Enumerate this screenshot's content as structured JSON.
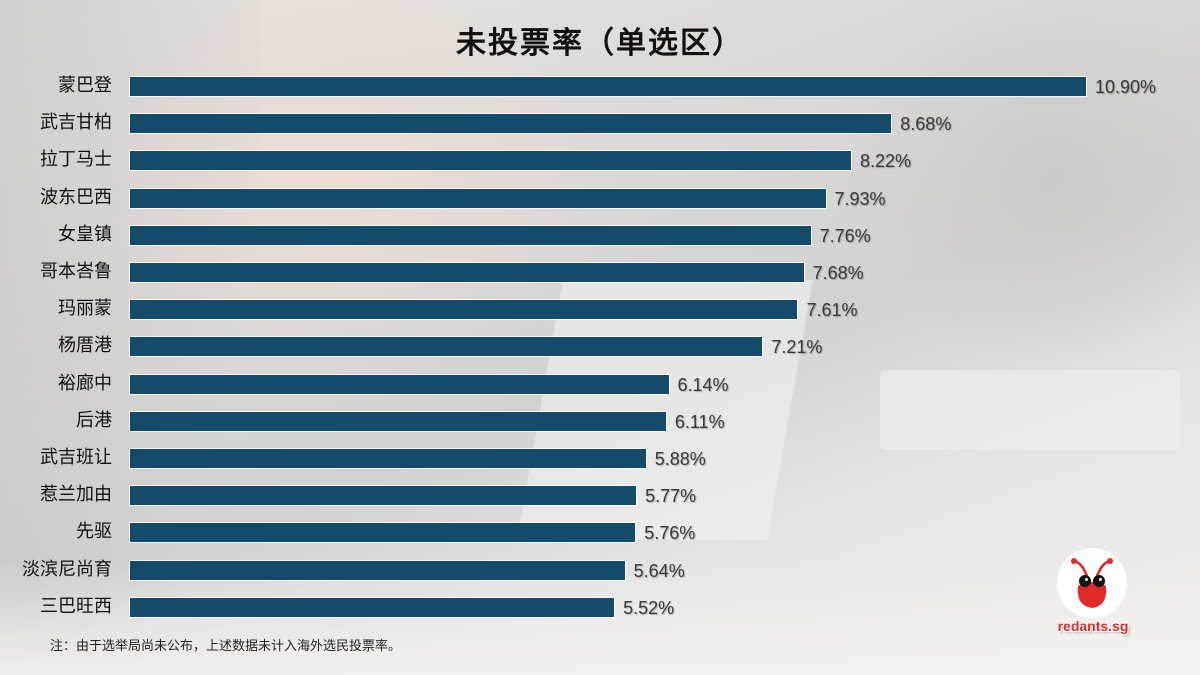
{
  "chart_data": {
    "type": "bar",
    "orientation": "horizontal",
    "title": "未投票率（单选区）",
    "xlabel": "",
    "ylabel": "",
    "grid": false,
    "legend": null,
    "categories": [
      "蒙巴登",
      "武吉甘柏",
      "拉丁马士",
      "波东巴西",
      "女皇镇",
      "哥本峇鲁",
      "玛丽蒙",
      "杨厝港",
      "裕廊中",
      "后港",
      "武吉班让",
      "惹兰加由",
      "先驱",
      "淡滨尼尚育",
      "三巴旺西"
    ],
    "values": [
      10.9,
      8.68,
      8.22,
      7.93,
      7.76,
      7.68,
      7.61,
      7.21,
      6.14,
      6.11,
      5.88,
      5.77,
      5.76,
      5.64,
      5.52
    ],
    "value_labels": [
      "10.90%",
      "8.68%",
      "8.22%",
      "7.93%",
      "7.76%",
      "7.68%",
      "7.61%",
      "7.21%",
      "6.14%",
      "6.11%",
      "5.88%",
      "5.77%",
      "5.76%",
      "5.64%",
      "5.52%"
    ],
    "unit": "%",
    "bar_color": "#144a6a"
  },
  "footnote": "注：由于选举局尚未公布，上述数据未计入海外选民投票率。",
  "logo": {
    "text": "redants.sg",
    "color": "#e02a2a"
  }
}
